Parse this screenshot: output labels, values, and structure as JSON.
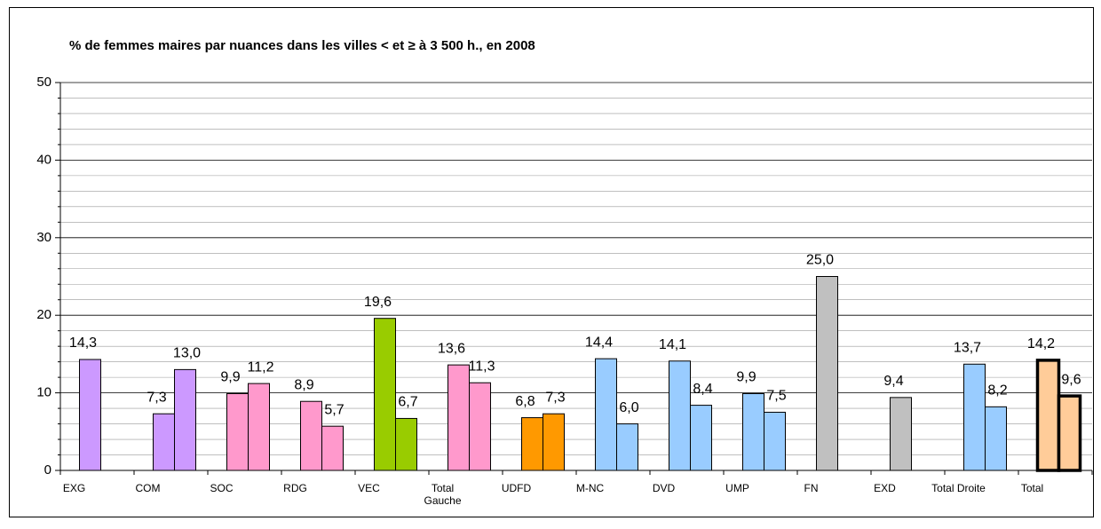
{
  "chart_data": {
    "type": "bar",
    "title": "% de femmes maires par nuances dans les villes < et ≥ à 3 500 h., en 2008",
    "categories": [
      "EXG",
      "COM",
      "SOC",
      "RDG",
      "VEC",
      "Total Gauche",
      "UDFD",
      "M-NC",
      "DVD",
      "UMP",
      "FN",
      "EXD",
      "Total Droite",
      "Total"
    ],
    "colors": [
      "#cc99ff",
      "#cc99ff",
      "#ff99cc",
      "#ff99cc",
      "#99cc00",
      "#ff99cc",
      "#ff9900",
      "#99ccff",
      "#99ccff",
      "#99ccff",
      "#c0c0c0",
      "#c0c0c0",
      "#99ccff",
      "#ffcc99"
    ],
    "series": [
      {
        "values": [
          14.3,
          7.3,
          9.9,
          8.9,
          19.6,
          13.6,
          6.8,
          14.4,
          14.1,
          9.9,
          25.0,
          9.4,
          13.7,
          14.2
        ],
        "value_labels": [
          "14,3",
          "7,3",
          "9,9",
          "8,9",
          "19,6",
          "13,6",
          "6,8",
          "14,4",
          "14,1",
          "9,9",
          "25,0",
          "9,4",
          "13,7",
          "14,2"
        ]
      },
      {
        "values": [
          null,
          13.0,
          11.2,
          5.7,
          6.7,
          11.3,
          7.3,
          6.0,
          8.4,
          7.5,
          null,
          null,
          8.2,
          9.6
        ],
        "value_labels": [
          null,
          "13,0",
          "11,2",
          "5,7",
          "6,7",
          "11,3",
          "7,3",
          "6,0",
          "8,4",
          "7,5",
          null,
          null,
          "8,2",
          "9,6"
        ]
      }
    ],
    "ylim": [
      0,
      50
    ],
    "yticks": [
      0,
      10,
      20,
      30,
      40,
      50
    ],
    "minor_yticks": [
      2,
      4,
      6,
      8,
      12,
      14,
      16,
      18,
      22,
      24,
      26,
      28,
      32,
      34,
      36,
      38,
      42,
      44,
      46,
      48
    ],
    "grid": true
  }
}
